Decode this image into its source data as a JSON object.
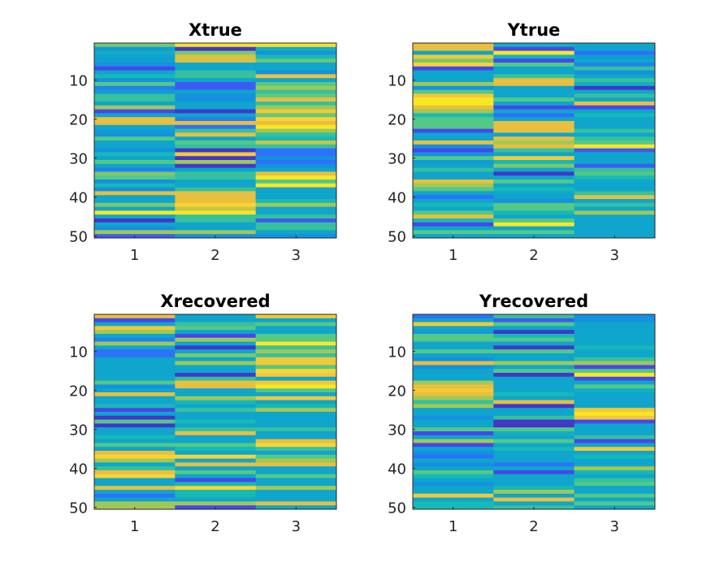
{
  "chart_data": [
    {
      "type": "heatmap",
      "title": "Xtrue",
      "colormap": "parula",
      "x_ticks": [
        "1",
        "2",
        "3"
      ],
      "y_ticks": [
        "10",
        "20",
        "30",
        "40",
        "50"
      ],
      "xlim": [
        0.5,
        3.5
      ],
      "ylim": [
        0.5,
        50.5
      ],
      "y_direction": "reverse",
      "values": [
        [
          0.64,
          0.93,
          0.93
        ],
        [
          0.35,
          0.05,
          0.45
        ],
        [
          0.44,
          0.65,
          0.3
        ],
        [
          0.38,
          0.78,
          0.5
        ],
        [
          0.38,
          0.78,
          0.62
        ],
        [
          0.3,
          0.4,
          0.4
        ],
        [
          0.1,
          0.4,
          0.4
        ],
        [
          0.4,
          0.55,
          0.3
        ],
        [
          0.5,
          0.55,
          0.82
        ],
        [
          0.3,
          0.4,
          0.4
        ],
        [
          0.6,
          0.15,
          0.6
        ],
        [
          0.25,
          0.15,
          0.7
        ],
        [
          0.35,
          0.4,
          0.55
        ],
        [
          0.55,
          0.3,
          0.62
        ],
        [
          0.55,
          0.3,
          0.8
        ],
        [
          0.4,
          0.4,
          0.55
        ],
        [
          0.7,
          0.4,
          0.7
        ],
        [
          0.1,
          0.05,
          0.85
        ],
        [
          0.4,
          0.4,
          0.62
        ],
        [
          0.8,
          0.25,
          0.9
        ],
        [
          0.8,
          0.8,
          0.8
        ],
        [
          0.4,
          0.2,
          0.95
        ],
        [
          0.35,
          0.55,
          0.7
        ],
        [
          0.3,
          0.8,
          0.55
        ],
        [
          0.6,
          0.4,
          0.5
        ],
        [
          0.4,
          0.6,
          0.75
        ],
        [
          0.4,
          0.55,
          0.55
        ],
        [
          0.3,
          0.05,
          0.2
        ],
        [
          0.5,
          0.85,
          0.2
        ],
        [
          0.4,
          0.05,
          0.3
        ],
        [
          0.6,
          0.7,
          0.2
        ],
        [
          0.4,
          0.05,
          0.3
        ],
        [
          0.25,
          0.4,
          0.4
        ],
        [
          0.65,
          0.55,
          0.8
        ],
        [
          0.6,
          0.55,
          0.95
        ],
        [
          0.3,
          0.4,
          0.6
        ],
        [
          0.5,
          0.4,
          0.95
        ],
        [
          0.3,
          0.55,
          0.4
        ],
        [
          0.8,
          0.8,
          0.4
        ],
        [
          0.4,
          0.8,
          0.4
        ],
        [
          0.4,
          0.8,
          0.5
        ],
        [
          0.65,
          0.9,
          0.7
        ],
        [
          0.4,
          0.75,
          0.4
        ],
        [
          0.95,
          0.95,
          0.4
        ],
        [
          0.4,
          0.55,
          0.55
        ],
        [
          0.05,
          0.55,
          0.15
        ],
        [
          0.4,
          0.4,
          0.55
        ],
        [
          0.3,
          0.4,
          0.55
        ],
        [
          0.7,
          0.7,
          0.4
        ],
        [
          0.15,
          0.3,
          0.3
        ]
      ]
    },
    {
      "type": "heatmap",
      "title": "Ytrue",
      "colormap": "parula",
      "x_ticks": [
        "1",
        "2",
        "3"
      ],
      "y_ticks": [
        "10",
        "20",
        "30",
        "40",
        "50"
      ],
      "xlim": [
        0.5,
        3.5
      ],
      "ylim": [
        0.5,
        50.5
      ],
      "y_direction": "reverse",
      "values": [
        [
          0.8,
          0.45,
          0.4
        ],
        [
          0.8,
          0.1,
          0.4
        ],
        [
          0.4,
          0.95,
          0.2
        ],
        [
          0.85,
          0.45,
          0.35
        ],
        [
          0.65,
          0.1,
          0.4
        ],
        [
          0.9,
          0.6,
          0.25
        ],
        [
          0.1,
          0.4,
          0.55
        ],
        [
          0.4,
          0.4,
          0.3
        ],
        [
          0.4,
          0.55,
          0.4
        ],
        [
          0.4,
          0.8,
          0.55
        ],
        [
          0.7,
          0.8,
          0.45
        ],
        [
          0.3,
          0.4,
          0.05
        ],
        [
          0.6,
          0.4,
          0.4
        ],
        [
          0.85,
          0.4,
          0.55
        ],
        [
          0.95,
          0.6,
          0.4
        ],
        [
          0.95,
          0.4,
          0.8
        ],
        [
          0.8,
          0.1,
          0.1
        ],
        [
          0.7,
          0.4,
          0.4
        ],
        [
          0.5,
          0.2,
          0.5
        ],
        [
          0.6,
          0.4,
          0.4
        ],
        [
          0.6,
          0.8,
          0.4
        ],
        [
          0.6,
          0.8,
          0.4
        ],
        [
          0.1,
          0.8,
          0.55
        ],
        [
          0.4,
          0.4,
          0.4
        ],
        [
          0.4,
          0.8,
          0.55
        ],
        [
          0.8,
          0.7,
          0.6
        ],
        [
          0.3,
          0.8,
          0.95
        ],
        [
          0.1,
          0.55,
          0.15
        ],
        [
          0.3,
          0.4,
          0.4
        ],
        [
          0.6,
          0.85,
          0.4
        ],
        [
          0.35,
          0.5,
          0.4
        ],
        [
          0.4,
          0.65,
          0.15
        ],
        [
          0.55,
          0.4,
          0.55
        ],
        [
          0.4,
          0.05,
          0.6
        ],
        [
          0.4,
          0.4,
          0.5
        ],
        [
          0.8,
          0.6,
          0.4
        ],
        [
          0.7,
          0.4,
          0.4
        ],
        [
          0.6,
          0.5,
          0.4
        ],
        [
          0.4,
          0.4,
          0.55
        ],
        [
          0.2,
          0.4,
          0.8
        ],
        [
          0.4,
          0.3,
          0.4
        ],
        [
          0.5,
          0.6,
          0.55
        ],
        [
          0.4,
          0.6,
          0.4
        ],
        [
          0.6,
          0.5,
          0.7
        ],
        [
          0.8,
          0.4,
          0.4
        ],
        [
          0.5,
          0.6,
          0.4
        ],
        [
          0.1,
          0.95,
          0.4
        ],
        [
          0.4,
          0.4,
          0.4
        ],
        [
          0.6,
          0.6,
          0.4
        ],
        [
          0.4,
          0.4,
          0.4
        ]
      ]
    },
    {
      "type": "heatmap",
      "title": "Xrecovered",
      "colormap": "parula",
      "x_ticks": [
        "1",
        "2",
        "3"
      ],
      "y_ticks": [
        "10",
        "20",
        "30",
        "40",
        "50"
      ],
      "xlim": [
        0.5,
        3.5
      ],
      "ylim": [
        0.5,
        50.5
      ],
      "y_direction": "reverse",
      "values": [
        [
          0.8,
          0.4,
          0.85
        ],
        [
          0.1,
          0.4,
          0.4
        ],
        [
          0.4,
          0.55,
          0.6
        ],
        [
          0.85,
          0.6,
          0.4
        ],
        [
          0.7,
          0.4,
          0.4
        ],
        [
          0.4,
          0.1,
          0.6
        ],
        [
          0.25,
          0.7,
          0.6
        ],
        [
          0.7,
          0.4,
          0.95
        ],
        [
          0.4,
          0.05,
          0.55
        ],
        [
          0.2,
          0.4,
          0.7
        ],
        [
          0.2,
          0.65,
          0.55
        ],
        [
          0.4,
          0.4,
          0.85
        ],
        [
          0.4,
          0.7,
          0.85
        ],
        [
          0.4,
          0.4,
          0.6
        ],
        [
          0.4,
          0.4,
          0.9
        ],
        [
          0.4,
          0.05,
          0.85
        ],
        [
          0.4,
          0.55,
          0.4
        ],
        [
          0.6,
          0.8,
          0.85
        ],
        [
          0.3,
          0.8,
          0.95
        ],
        [
          0.4,
          0.4,
          0.6
        ],
        [
          0.8,
          0.4,
          0.4
        ],
        [
          0.4,
          0.7,
          0.85
        ],
        [
          0.4,
          0.5,
          0.4
        ],
        [
          0.5,
          0.4,
          0.5
        ],
        [
          0.1,
          0.55,
          0.7
        ],
        [
          0.4,
          0.4,
          0.4
        ],
        [
          0.05,
          0.4,
          0.4
        ],
        [
          0.6,
          0.5,
          0.4
        ],
        [
          0.05,
          0.4,
          0.4
        ],
        [
          0.4,
          0.55,
          0.55
        ],
        [
          0.4,
          0.8,
          0.4
        ],
        [
          0.5,
          0.4,
          0.4
        ],
        [
          0.4,
          0.4,
          0.8
        ],
        [
          0.6,
          0.6,
          0.9
        ],
        [
          0.4,
          0.5,
          0.55
        ],
        [
          0.8,
          0.4,
          0.4
        ],
        [
          0.9,
          0.9,
          0.6
        ],
        [
          0.7,
          0.4,
          0.7
        ],
        [
          0.4,
          0.8,
          0.8
        ],
        [
          0.55,
          0.4,
          0.4
        ],
        [
          0.8,
          0.6,
          0.4
        ],
        [
          0.9,
          0.4,
          0.6
        ],
        [
          0.4,
          0.1,
          0.4
        ],
        [
          0.4,
          0.5,
          0.4
        ],
        [
          0.8,
          0.9,
          0.7
        ],
        [
          0.4,
          0.5,
          0.4
        ],
        [
          0.2,
          0.5,
          0.4
        ],
        [
          0.4,
          0.4,
          0.4
        ],
        [
          0.7,
          0.7,
          0.8
        ],
        [
          0.7,
          0.1,
          0.4
        ]
      ]
    },
    {
      "type": "heatmap",
      "title": "Yrecovered",
      "colormap": "parula",
      "x_ticks": [
        "1",
        "2",
        "3"
      ],
      "y_ticks": [
        "10",
        "20",
        "30",
        "40",
        "50"
      ],
      "xlim": [
        0.5,
        3.5
      ],
      "ylim": [
        0.5,
        50.5
      ],
      "y_direction": "reverse",
      "values": [
        [
          0.2,
          0.55,
          0.3
        ],
        [
          0.4,
          0.15,
          0.3
        ],
        [
          0.85,
          0.6,
          0.4
        ],
        [
          0.4,
          0.4,
          0.4
        ],
        [
          0.35,
          0.05,
          0.4
        ],
        [
          0.6,
          0.5,
          0.4
        ],
        [
          0.6,
          0.6,
          0.4
        ],
        [
          0.4,
          0.4,
          0.4
        ],
        [
          0.4,
          0.05,
          0.5
        ],
        [
          0.6,
          0.6,
          0.4
        ],
        [
          0.4,
          0.4,
          0.4
        ],
        [
          0.3,
          0.4,
          0.55
        ],
        [
          0.8,
          0.7,
          0.7
        ],
        [
          0.3,
          0.4,
          0.1
        ],
        [
          0.4,
          0.6,
          0.6
        ],
        [
          0.4,
          0.05,
          0.95
        ],
        [
          0.4,
          0.4,
          0.1
        ],
        [
          0.7,
          0.4,
          0.4
        ],
        [
          0.8,
          0.4,
          0.6
        ],
        [
          0.85,
          0.4,
          0.45
        ],
        [
          0.8,
          0.5,
          0.4
        ],
        [
          0.7,
          0.4,
          0.4
        ],
        [
          0.55,
          0.8,
          0.4
        ],
        [
          0.7,
          0.05,
          0.4
        ],
        [
          0.4,
          0.4,
          0.85
        ],
        [
          0.4,
          0.4,
          0.95
        ],
        [
          0.3,
          0.55,
          0.85
        ],
        [
          0.4,
          0.05,
          0.1
        ],
        [
          0.4,
          0.05,
          0.4
        ],
        [
          0.6,
          0.6,
          0.4
        ],
        [
          0.1,
          0.45,
          0.4
        ],
        [
          0.4,
          0.4,
          0.55
        ],
        [
          0.7,
          0.6,
          0.1
        ],
        [
          0.1,
          0.4,
          0.4
        ],
        [
          0.4,
          0.5,
          0.85
        ],
        [
          0.3,
          0.4,
          0.4
        ],
        [
          0.2,
          0.4,
          0.5
        ],
        [
          0.4,
          0.4,
          0.4
        ],
        [
          0.3,
          0.2,
          0.4
        ],
        [
          0.4,
          0.4,
          0.7
        ],
        [
          0.6,
          0.1,
          0.5
        ],
        [
          0.5,
          0.4,
          0.4
        ],
        [
          0.4,
          0.4,
          0.55
        ],
        [
          0.3,
          0.4,
          0.6
        ],
        [
          0.4,
          0.5,
          0.4
        ],
        [
          0.4,
          0.7,
          0.4
        ],
        [
          0.85,
          0.4,
          0.6
        ],
        [
          0.4,
          0.8,
          0.4
        ],
        [
          0.5,
          0.4,
          0.6
        ],
        [
          0.5,
          0.55,
          0.4
        ]
      ]
    }
  ]
}
